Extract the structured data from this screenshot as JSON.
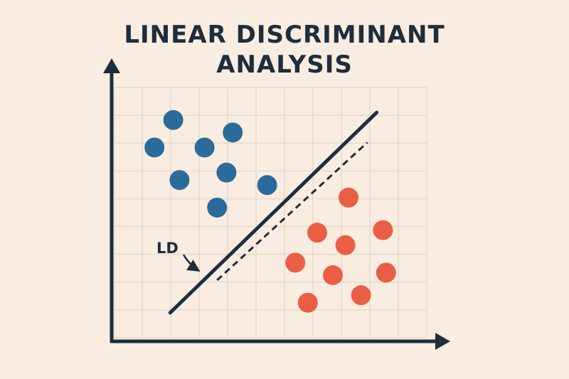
{
  "title": {
    "line1": "LINEAR DISCRIMINANT",
    "line2": "ANALYSIS"
  },
  "annotation": {
    "text": "LD"
  },
  "colors": {
    "background": "#f8ede0",
    "ink": "#1f2d3d",
    "grid": "#eadfcf",
    "class_a": "#2a6b9c",
    "class_b": "#ea5e45"
  },
  "chart_data": {
    "type": "scatter",
    "grid": true,
    "xlim": [
      0,
      10
    ],
    "ylim": [
      0,
      10
    ],
    "series": [
      {
        "color": "#2a6b9c",
        "points": [
          [
            1.9,
            8.7
          ],
          [
            1.3,
            7.6
          ],
          [
            2.9,
            7.6
          ],
          [
            3.8,
            8.2
          ],
          [
            2.1,
            6.3
          ],
          [
            3.6,
            6.6
          ],
          [
            4.9,
            6.1
          ],
          [
            3.3,
            5.2
          ]
        ]
      },
      {
        "color": "#ea5e45",
        "points": [
          [
            7.5,
            5.6
          ],
          [
            6.5,
            4.2
          ],
          [
            8.6,
            4.3
          ],
          [
            7.4,
            3.7
          ],
          [
            5.8,
            3.0
          ],
          [
            7.0,
            2.5
          ],
          [
            8.7,
            2.6
          ],
          [
            6.2,
            1.4
          ],
          [
            7.9,
            1.7
          ]
        ]
      }
    ],
    "lines": [
      {
        "style": "solid",
        "from": [
          1.8,
          1.0
        ],
        "to": [
          8.4,
          9.0
        ]
      },
      {
        "style": "dashed",
        "from": [
          3.3,
          2.3
        ],
        "to": [
          8.1,
          7.8
        ]
      }
    ]
  }
}
